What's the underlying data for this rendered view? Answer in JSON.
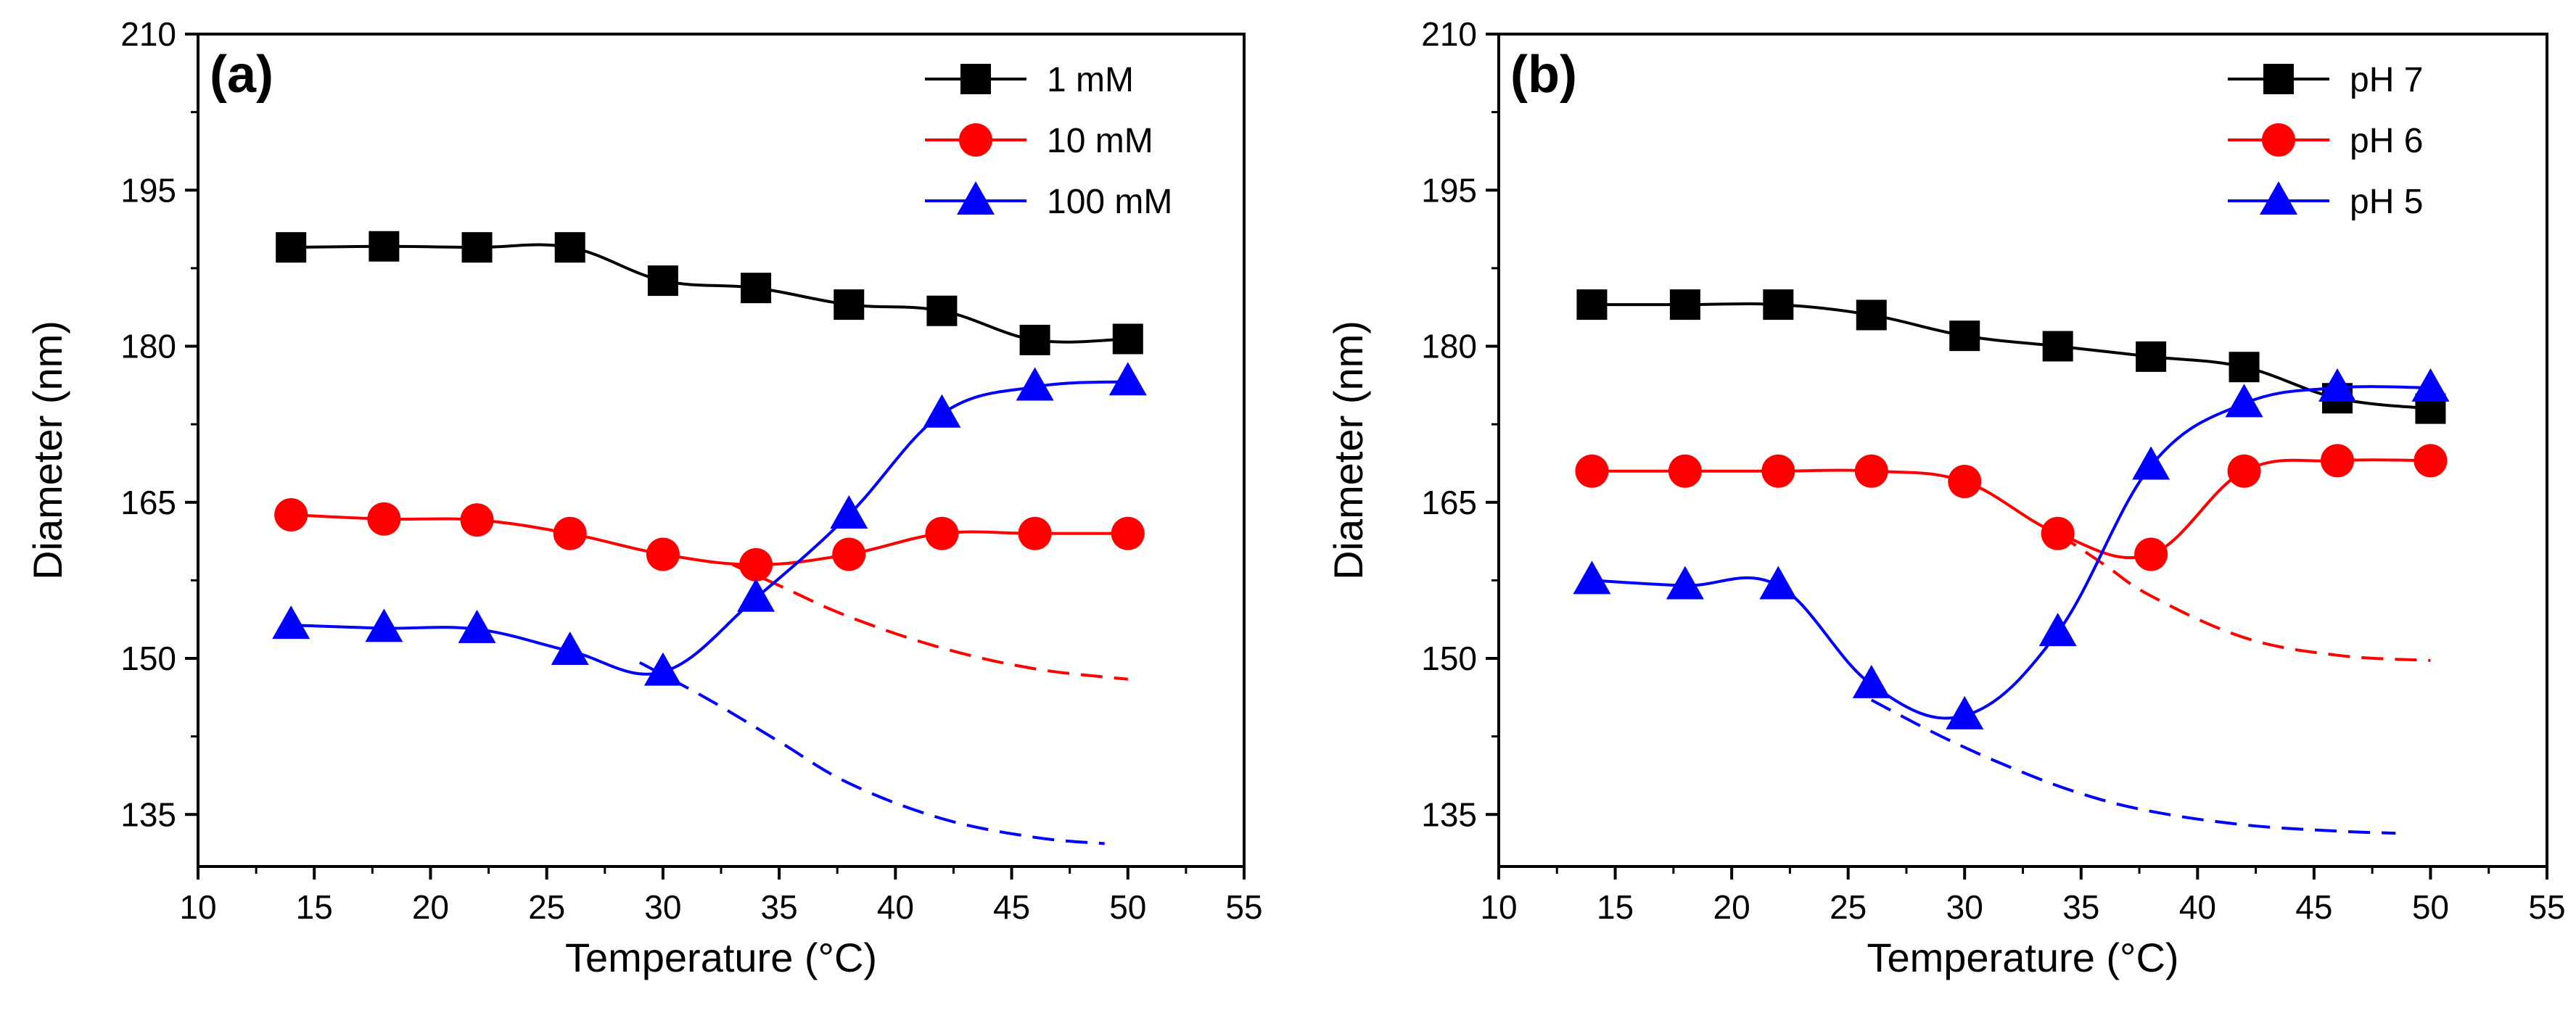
{
  "chart_data": [
    {
      "type": "line",
      "panel_label": "(a)",
      "xlabel": "Temperature (°C)",
      "ylabel": "Diameter (nm)",
      "xlim": [
        10,
        55
      ],
      "ylim": [
        130,
        210
      ],
      "xticks": [
        10,
        15,
        20,
        25,
        30,
        35,
        40,
        45,
        50,
        55
      ],
      "yticks": [
        135,
        150,
        165,
        180,
        195,
        210
      ],
      "legend_position": "top-right",
      "series": [
        {
          "name": "1 mM",
          "color": "#000000",
          "marker": "square",
          "x": [
            14,
            18,
            22,
            26,
            30,
            34,
            38,
            42,
            46,
            50
          ],
          "y": [
            189.5,
            189.6,
            189.5,
            189.5,
            186.3,
            185.6,
            184.0,
            183.4,
            180.6,
            180.7
          ]
        },
        {
          "name": "10 mM",
          "color": "#ff0000",
          "marker": "circle",
          "x": [
            14,
            18,
            22,
            26,
            30,
            34,
            38,
            42,
            46,
            50
          ],
          "y": [
            163.8,
            163.4,
            163.3,
            162.0,
            160.0,
            159.0,
            160.0,
            162.0,
            162.0,
            162.0
          ]
        },
        {
          "name": "100 mM",
          "color": "#0000ff",
          "marker": "triangle",
          "x": [
            14,
            18,
            22,
            26,
            30,
            34,
            38,
            42,
            46,
            50
          ],
          "y": [
            153.2,
            152.9,
            152.8,
            150.7,
            148.7,
            155.8,
            163.8,
            173.5,
            176.1,
            176.6
          ]
        }
      ],
      "fit_curves": [
        {
          "of": "10 mM",
          "color": "#ff0000",
          "x": [
            33,
            35,
            38,
            42,
            46,
            50
          ],
          "y": [
            159.0,
            157.0,
            154.0,
            151.0,
            149.0,
            148.0
          ]
        },
        {
          "of": "100 mM",
          "color": "#0000ff",
          "x": [
            29,
            32,
            35,
            38,
            42,
            46,
            49
          ],
          "y": [
            149.6,
            146.0,
            142.0,
            138.0,
            134.6,
            132.8,
            132.2
          ]
        }
      ]
    },
    {
      "type": "line",
      "panel_label": "(b)",
      "xlabel": "Temperature (°C)",
      "ylabel": "Diameter (nm)",
      "xlim": [
        10,
        55
      ],
      "ylim": [
        130,
        210
      ],
      "xticks": [
        10,
        15,
        20,
        25,
        30,
        35,
        40,
        45,
        50,
        55
      ],
      "yticks": [
        135,
        150,
        165,
        180,
        195,
        210
      ],
      "legend_position": "top-right",
      "series": [
        {
          "name": "pH 7",
          "color": "#000000",
          "marker": "square",
          "x": [
            14,
            18,
            22,
            26,
            30,
            34,
            38,
            42,
            46,
            50
          ],
          "y": [
            184.0,
            184.0,
            184.0,
            183.0,
            181.0,
            180.0,
            179.0,
            178.0,
            175.0,
            174.0
          ]
        },
        {
          "name": "pH 6",
          "color": "#ff0000",
          "marker": "circle",
          "x": [
            14,
            18,
            22,
            26,
            30,
            34,
            38,
            42,
            46,
            50
          ],
          "y": [
            168.0,
            168.0,
            168.0,
            168.0,
            167.0,
            162.0,
            160.0,
            168.0,
            169.0,
            169.0
          ]
        },
        {
          "name": "pH 5",
          "color": "#0000ff",
          "marker": "triangle",
          "x": [
            14,
            18,
            22,
            26,
            30,
            34,
            38,
            42,
            46,
            50
          ],
          "y": [
            157.5,
            157.0,
            157.0,
            147.5,
            144.5,
            152.5,
            168.5,
            174.5,
            176.0,
            176.0
          ]
        }
      ],
      "fit_curves": [
        {
          "of": "pH 6",
          "color": "#ff0000",
          "x": [
            34,
            36,
            38,
            42,
            46,
            50
          ],
          "y": [
            162.0,
            159.0,
            156.0,
            152.0,
            150.3,
            149.8
          ]
        },
        {
          "of": "pH 5",
          "color": "#0000ff",
          "x": [
            26,
            29,
            32,
            35,
            38,
            42,
            46,
            48.5
          ],
          "y": [
            146.0,
            142.5,
            139.5,
            137.0,
            135.3,
            134.0,
            133.4,
            133.2
          ]
        }
      ]
    }
  ]
}
